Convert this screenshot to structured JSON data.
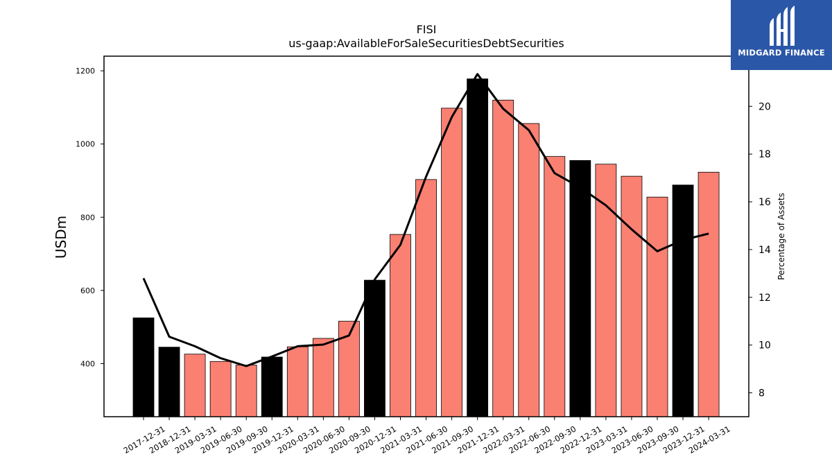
{
  "brand": {
    "name": "MIDGARD FINANCE",
    "bg_color": "#2b57a8"
  },
  "chart_data": {
    "type": "bar",
    "title": "FISI",
    "subtitle": "us-gaap:AvailableForSaleSecuritiesDebtSecurities",
    "ylabel": "USDm",
    "y2label": "Percentage of Assets",
    "ylim": [
      255,
      1240
    ],
    "y2lim": [
      7.0,
      22.1
    ],
    "yticks": [
      400,
      600,
      800,
      1000,
      1200
    ],
    "y2ticks": [
      8,
      10,
      12,
      14,
      16,
      18,
      20
    ],
    "grid": false,
    "categories": [
      "2017-12-31",
      "2018-12-31",
      "2019-03-31",
      "2019-06-30",
      "2019-09-30",
      "2019-12-31",
      "2020-03-31",
      "2020-06-30",
      "2020-09-30",
      "2020-12-31",
      "2021-03-31",
      "2021-06-30",
      "2021-09-30",
      "2021-12-31",
      "2022-03-31",
      "2022-06-30",
      "2022-09-30",
      "2022-12-31",
      "2023-03-31",
      "2023-06-30",
      "2023-09-30",
      "2023-12-31",
      "2024-03-31"
    ],
    "series": [
      {
        "type": "bar",
        "values": [
          525,
          445,
          426,
          406,
          396,
          418,
          446,
          469,
          516,
          628,
          753,
          903,
          1098,
          1178,
          1120,
          1056,
          966,
          955,
          945,
          912,
          855,
          888,
          923
        ],
        "colors": [
          "#000000",
          "#000000",
          "#fa8072",
          "#fa8072",
          "#fa8072",
          "#000000",
          "#fa8072",
          "#fa8072",
          "#fa8072",
          "#000000",
          "#fa8072",
          "#fa8072",
          "#fa8072",
          "#000000",
          "#fa8072",
          "#fa8072",
          "#fa8072",
          "#000000",
          "#fa8072",
          "#fa8072",
          "#fa8072",
          "#000000",
          "#fa8072"
        ]
      },
      {
        "type": "line",
        "axis": "y2",
        "color": "#000000",
        "values": [
          12.8,
          10.35,
          9.95,
          9.45,
          9.12,
          9.52,
          9.95,
          10.02,
          10.4,
          12.75,
          14.2,
          17.05,
          19.55,
          21.35,
          19.9,
          19.0,
          17.2,
          16.6,
          15.85,
          14.85,
          13.93,
          14.4,
          14.67
        ]
      }
    ]
  }
}
